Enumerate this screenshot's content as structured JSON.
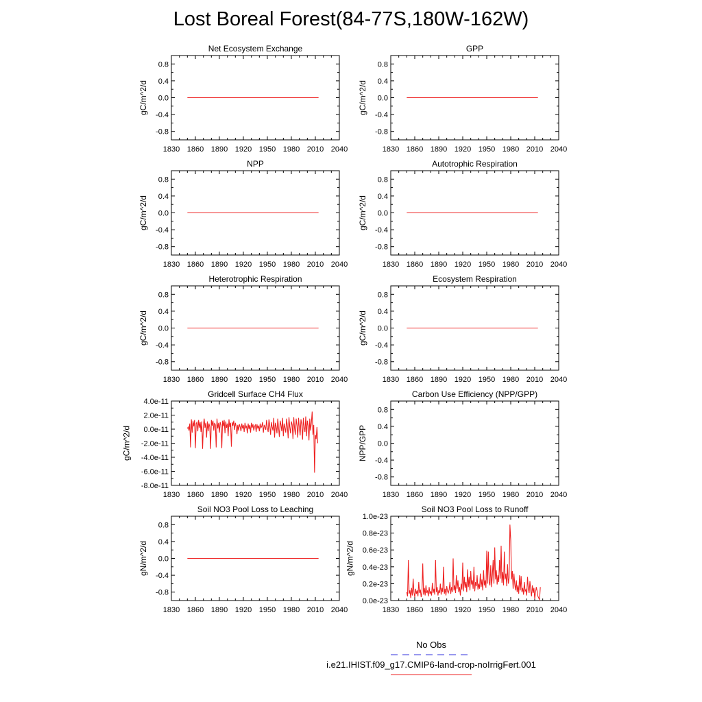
{
  "figure": {
    "title": "Lost Boreal Forest(84-77S,180W-162W)"
  },
  "legend": {
    "entries": [
      {
        "label": "No Obs",
        "color": "#3333dd",
        "style": "dashed"
      },
      {
        "label": "i.e21.IHIST.f09_g17.CMIP6-land-crop-noIrrigFert.001",
        "color": "#ee2222",
        "style": "solid"
      }
    ]
  },
  "chart_data": [
    {
      "type": "line",
      "title": "Net Ecosystem Exchange",
      "xlabel": "",
      "ylabel": "gC/m^2/d",
      "xlim": [
        1830,
        2040
      ],
      "ylim": [
        -1,
        1
      ],
      "xticks": [
        1830,
        1860,
        1890,
        1920,
        1950,
        1980,
        2010,
        2040
      ],
      "yticks": [
        -0.8,
        -0.4,
        0.0,
        0.4,
        0.8
      ],
      "ytick_labels": [
        "-0.8",
        "-0.4",
        "0.0",
        "0.4",
        "0.8"
      ],
      "series": [
        {
          "x": [
            1850,
            2014
          ],
          "y": [
            0,
            0
          ],
          "color": "#ee2222"
        }
      ]
    },
    {
      "type": "line",
      "title": "GPP",
      "xlabel": "",
      "ylabel": "gC/m^2/d",
      "xlim": [
        1830,
        2040
      ],
      "ylim": [
        -1,
        1
      ],
      "xticks": [
        1830,
        1860,
        1890,
        1920,
        1950,
        1980,
        2010,
        2040
      ],
      "yticks": [
        -0.8,
        -0.4,
        0.0,
        0.4,
        0.8
      ],
      "ytick_labels": [
        "-0.8",
        "-0.4",
        "0.0",
        "0.4",
        "0.8"
      ],
      "series": [
        {
          "x": [
            1850,
            2014
          ],
          "y": [
            0,
            0
          ],
          "color": "#ee2222"
        }
      ]
    },
    {
      "type": "line",
      "title": "NPP",
      "xlabel": "",
      "ylabel": "gC/m^2/d",
      "xlim": [
        1830,
        2040
      ],
      "ylim": [
        -1,
        1
      ],
      "xticks": [
        1830,
        1860,
        1890,
        1920,
        1950,
        1980,
        2010,
        2040
      ],
      "yticks": [
        -0.8,
        -0.4,
        0.0,
        0.4,
        0.8
      ],
      "ytick_labels": [
        "-0.8",
        "-0.4",
        "0.0",
        "0.4",
        "0.8"
      ],
      "series": [
        {
          "x": [
            1850,
            2014
          ],
          "y": [
            0,
            0
          ],
          "color": "#ee2222"
        }
      ]
    },
    {
      "type": "line",
      "title": "Autotrophic Respiration",
      "xlabel": "",
      "ylabel": "gC/m^2/d",
      "xlim": [
        1830,
        2040
      ],
      "ylim": [
        -1,
        1
      ],
      "xticks": [
        1830,
        1860,
        1890,
        1920,
        1950,
        1980,
        2010,
        2040
      ],
      "yticks": [
        -0.8,
        -0.4,
        0.0,
        0.4,
        0.8
      ],
      "ytick_labels": [
        "-0.8",
        "-0.4",
        "0.0",
        "0.4",
        "0.8"
      ],
      "series": [
        {
          "x": [
            1850,
            2014
          ],
          "y": [
            0,
            0
          ],
          "color": "#ee2222"
        }
      ]
    },
    {
      "type": "line",
      "title": "Heterotrophic Respiration",
      "xlabel": "",
      "ylabel": "gC/m^2/d",
      "xlim": [
        1830,
        2040
      ],
      "ylim": [
        -1,
        1
      ],
      "xticks": [
        1830,
        1860,
        1890,
        1920,
        1950,
        1980,
        2010,
        2040
      ],
      "yticks": [
        -0.8,
        -0.4,
        0.0,
        0.4,
        0.8
      ],
      "ytick_labels": [
        "-0.8",
        "-0.4",
        "0.0",
        "0.4",
        "0.8"
      ],
      "series": [
        {
          "x": [
            1850,
            2014
          ],
          "y": [
            0,
            0
          ],
          "color": "#ee2222"
        }
      ]
    },
    {
      "type": "line",
      "title": "Ecosystem Respiration",
      "xlabel": "",
      "ylabel": "gC/m^2/d",
      "xlim": [
        1830,
        2040
      ],
      "ylim": [
        -1,
        1
      ],
      "xticks": [
        1830,
        1860,
        1890,
        1920,
        1950,
        1980,
        2010,
        2040
      ],
      "yticks": [
        -0.8,
        -0.4,
        0.0,
        0.4,
        0.8
      ],
      "ytick_labels": [
        "-0.8",
        "-0.4",
        "0.0",
        "0.4",
        "0.8"
      ],
      "series": [
        {
          "x": [
            1850,
            2014
          ],
          "y": [
            0,
            0
          ],
          "color": "#ee2222"
        }
      ]
    },
    {
      "type": "line",
      "title": "Gridcell Surface CH4 Flux",
      "xlabel": "",
      "ylabel": "gC/m^2/d",
      "xlim": [
        1830,
        2040
      ],
      "ylim": [
        -8e-11,
        4e-11
      ],
      "xticks": [
        1830,
        1860,
        1890,
        1920,
        1950,
        1980,
        2010,
        2040
      ],
      "yticks": [
        -8e-11,
        -6e-11,
        -4e-11,
        -2e-11,
        0,
        2e-11,
        4e-11
      ],
      "ytick_labels": [
        "-8.0e-11",
        "-6.0e-11",
        "-4.0e-11",
        "-2.0e-11",
        "0.0e-11",
        "2.0e-11",
        "4.0e-11"
      ],
      "series": [
        {
          "x_start": 1850,
          "x_step": 1,
          "color": "#ee2222",
          "y": [
            1e-12,
            3e-12,
            -2e-12,
            8e-12,
            -2.6e-11,
            1.4e-11,
            -5e-12,
            1.2e-11,
            4e-12,
            1.3e-11,
            -2.7e-11,
            8e-12,
            1e-11,
            -3e-12,
            1.3e-11,
            2e-12,
            1e-11,
            -4e-12,
            1.1e-11,
            -2.8e-11,
            5e-12,
            1.5e-11,
            2e-12,
            9e-12,
            -1.2e-11,
            1.1e-11,
            -3e-12,
            8e-12,
            3e-12,
            -2.8e-11,
            1.3e-11,
            5e-12,
            1.2e-11,
            -2e-12,
            9e-12,
            6e-12,
            -2.6e-11,
            1.5e-11,
            1e-12,
            9e-12,
            -5e-12,
            1e-11,
            6e-12,
            -2.7e-11,
            1.2e-11,
            4e-12,
            1.3e-11,
            -6e-12,
            1.1e-11,
            2e-12,
            8e-12,
            -1e-11,
            1.4e-11,
            3e-12,
            9e-12,
            -2.5e-11,
            1e-11,
            5e-12,
            1.2e-11,
            -1e-12,
            9e-12,
            4e-12,
            -7e-12,
            6e-12,
            -2e-12,
            7e-12,
            3e-12,
            -3e-12,
            8e-12,
            1e-12,
            6e-12,
            -4e-12,
            9e-12,
            2e-12,
            4e-12,
            -6e-12,
            8e-12,
            0.0,
            6e-12,
            -5e-12,
            9e-12,
            2e-12,
            7e-12,
            -2e-12,
            4e-12,
            6e-12,
            -4e-12,
            7e-12,
            1e-12,
            5e-12,
            -3e-12,
            8e-12,
            2e-12,
            4e-12,
            1e-11,
            -5e-12,
            6e-12,
            3e-12,
            -1e-12,
            1.3e-11,
            2e-12,
            -4e-12,
            1.4e-11,
            5e-12,
            -8e-12,
            1e-11,
            3e-12,
            -2e-12,
            1.6e-11,
            -1.2e-11,
            9e-12,
            4e-12,
            -6e-12,
            1.5e-11,
            2e-12,
            -1.1e-11,
            1.2e-11,
            6e-12,
            -3e-12,
            1.6e-11,
            -1e-11,
            8e-12,
            2e-12,
            -5e-12,
            1.5e-11,
            4e-12,
            -1.3e-11,
            1.7e-11,
            3e-12,
            -6e-12,
            1.1e-11,
            6e-12,
            -1.4e-11,
            1.7e-11,
            1e-12,
            -8e-12,
            1.5e-11,
            5e-12,
            -1.2e-11,
            1.6e-11,
            2e-12,
            -9e-12,
            1.4e-11,
            7e-12,
            -1.5e-11,
            1.6e-11,
            3e-12,
            -4e-12,
            1.8e-11,
            -1e-11,
            1.2e-11,
            5e-12,
            -1.6e-11,
            1.5e-11,
            -2e-12,
            9e-12,
            2.5e-11,
            -8e-12,
            6e-12,
            -6.2e-11,
            -8e-12,
            -1.4e-11,
            3e-12,
            -2e-11
          ]
        }
      ]
    },
    {
      "type": "line",
      "title": "Carbon Use Efficiency (NPP/GPP)",
      "xlabel": "",
      "ylabel": "NPP/GPP",
      "xlim": [
        1830,
        2040
      ],
      "ylim": [
        -1,
        1
      ],
      "xticks": [
        1830,
        1860,
        1890,
        1920,
        1950,
        1980,
        2010,
        2040
      ],
      "yticks": [
        -0.8,
        -0.4,
        0.0,
        0.4,
        0.8
      ],
      "ytick_labels": [
        "-0.8",
        "-0.4",
        "0.0",
        "0.4",
        "0.8"
      ],
      "series": []
    },
    {
      "type": "line",
      "title": "Soil NO3 Pool Loss to Leaching",
      "xlabel": "",
      "ylabel": "gN/m^2/d",
      "xlim": [
        1830,
        2040
      ],
      "ylim": [
        -1,
        1
      ],
      "xticks": [
        1830,
        1860,
        1890,
        1920,
        1950,
        1980,
        2010,
        2040
      ],
      "yticks": [
        -0.8,
        -0.4,
        0.0,
        0.4,
        0.8
      ],
      "ytick_labels": [
        "-0.8",
        "-0.4",
        "0.0",
        "0.4",
        "0.8"
      ],
      "series": [
        {
          "x": [
            1850,
            2014
          ],
          "y": [
            0,
            0
          ],
          "color": "#ee2222"
        }
      ]
    },
    {
      "type": "line",
      "title": "Soil NO3 Pool Loss to Runoff",
      "xlabel": "",
      "ylabel": "gN/m^2/d",
      "xlim": [
        1830,
        2040
      ],
      "ylim": [
        0,
        1e-23
      ],
      "xticks": [
        1830,
        1860,
        1890,
        1920,
        1950,
        1980,
        2010,
        2040
      ],
      "yticks": [
        0,
        2e-24,
        4e-24,
        6e-24,
        8e-24,
        1e-23
      ],
      "ytick_labels": [
        "0.0e-23",
        "0.2e-23",
        "0.4e-23",
        "0.6e-23",
        "0.8e-23",
        "1.0e-23"
      ],
      "series": [
        {
          "x_start": 1850,
          "x_step": 1,
          "color": "#ee2222",
          "y": [
            1e-24,
            5e-25,
            4.8e-24,
            8e-25,
            1.2e-24,
            3e-25,
            1.5e-24,
            6e-25,
            2.6e-24,
            1e-24,
            4e-25,
            1.4e-24,
            8e-25,
            1.2e-24,
            5e-25,
            2.2e-24,
            9e-25,
            1.3e-24,
            4e-25,
            1e-24,
            4.4e-24,
            7e-25,
            1.5e-24,
            6e-25,
            1.8e-24,
            9e-25,
            1.2e-24,
            5e-25,
            1.6e-24,
            8e-25,
            1.1e-24,
            6e-25,
            2.1e-24,
            9e-25,
            1.4e-24,
            7e-25,
            4.8e-24,
            1e-24,
            1.6e-24,
            6e-25,
            1.2e-24,
            9e-25,
            2e-24,
            7e-25,
            1.5e-24,
            1e-24,
            4e-24,
            8e-25,
            1.4e-24,
            6e-25,
            1.7e-24,
            1.1e-24,
            9e-25,
            1.3e-24,
            2.2e-24,
            8e-25,
            1.6e-24,
            1e-24,
            5e-24,
            1.2e-24,
            1.8e-24,
            9e-25,
            3e-24,
            1.4e-24,
            2.4e-24,
            1e-24,
            1.6e-24,
            6e-25,
            2e-24,
            1.3e-24,
            4.5e-24,
            1.1e-24,
            2.8e-24,
            1.5e-24,
            2.2e-24,
            1e-24,
            3.7e-24,
            1.6e-24,
            2.8e-24,
            1.2e-24,
            3.5e-24,
            1.9e-24,
            2.4e-24,
            1.4e-24,
            4e-24,
            1.1e-24,
            2.2e-24,
            1.7e-24,
            3e-24,
            1.3e-24,
            2e-24,
            1.4e-24,
            3.2e-24,
            1.6e-24,
            2.5e-24,
            1.2e-24,
            3.6e-24,
            1.8e-24,
            2.4e-24,
            1.5e-24,
            5.9e-24,
            2e-24,
            5.8e-24,
            2.2e-24,
            1.8e-24,
            4.2e-24,
            1.6e-24,
            3e-24,
            4.8e-24,
            2e-24,
            6.3e-24,
            2.5e-24,
            3.6e-24,
            1.9e-24,
            3e-24,
            2.2e-24,
            4.8e-24,
            2.6e-24,
            6.5e-24,
            2.1e-24,
            3.4e-24,
            1.8e-24,
            5.8e-24,
            2.5e-24,
            3.2e-24,
            1.7e-24,
            4.3e-24,
            2e-24,
            2.7e-24,
            9e-24,
            7.2e-24,
            2.5e-24,
            3.5e-24,
            1.4e-24,
            3.2e-24,
            2e-24,
            1.2e-24,
            2.4e-24,
            1e-24,
            1.8e-24,
            8e-25,
            3e-24,
            1.2e-24,
            2.9e-24,
            1e-24,
            1.5e-24,
            7e-25,
            2.2e-24,
            1.1e-24,
            1.3e-24,
            6e-25,
            2.8e-24,
            1.4e-24,
            9e-25,
            2.3e-24,
            1.2e-24,
            5e-25,
            1.8e-24,
            9e-25,
            1.5e-24,
            2e-25,
            1e-24,
            1.6e-24,
            1.1e-24,
            5e-25,
            3e-25,
            1e-25,
            1.6e-24
          ]
        }
      ]
    }
  ]
}
